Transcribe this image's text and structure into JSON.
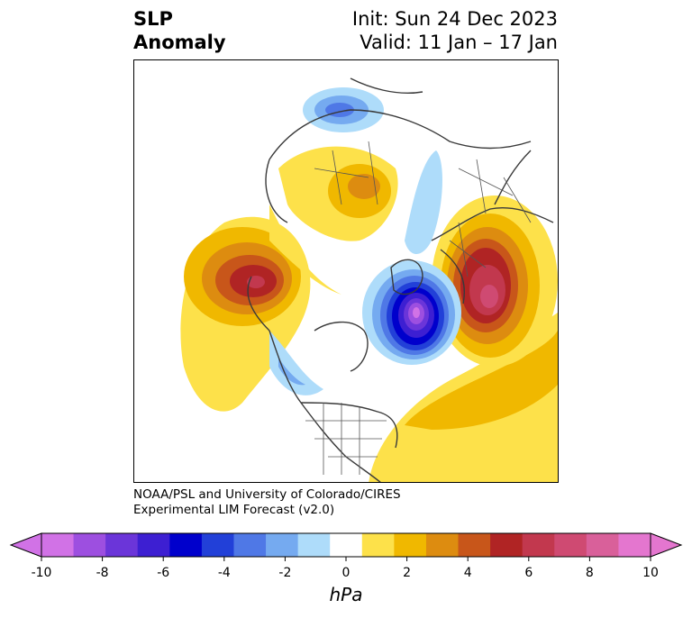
{
  "title": {
    "left_line1": "SLP",
    "left_line2": "Anomaly",
    "right_line1": "Init: Sun 24 Dec 2023",
    "right_line2": "Valid: 11 Jan – 17 Jan"
  },
  "credit": {
    "line1": "NOAA/PSL and University of Colorado/CIRES",
    "line2": "Experimental LIM Forecast (v2.0)"
  },
  "colorbar": {
    "unit": "hPa",
    "ticks": [
      "-10",
      "-8",
      "-6",
      "-4",
      "-2",
      "0",
      "2",
      "4",
      "6",
      "8",
      "10"
    ],
    "levels": [
      -10,
      -9,
      -8,
      -7,
      -6,
      -5,
      -4,
      -3,
      -2,
      -1,
      1,
      2,
      3,
      4,
      5,
      6,
      7,
      8,
      9,
      10
    ],
    "colors": [
      "#d172e6",
      "#9d4fe0",
      "#6b35d9",
      "#3d1fd2",
      "#0000cc",
      "#2240d8",
      "#4f78e6",
      "#75aaf0",
      "#aedcfa",
      "#ffffff",
      "#fde14a",
      "#f0b800",
      "#dd8c10",
      "#c8561a",
      "#b02424",
      "#c2384e",
      "#cf4a72",
      "#d9609a",
      "#e476cf"
    ],
    "under_color": "#d172e6",
    "over_color": "#e476cf"
  },
  "map": {
    "projection": "north-polar-stereographic",
    "features": [
      {
        "name": "subtropical-atlantic-high",
        "type": "high",
        "peak_hpa": 3
      },
      {
        "name": "iberia-europe-high",
        "type": "high",
        "peak_hpa": 8
      },
      {
        "name": "north-pacific-high",
        "type": "high",
        "peak_hpa": 6
      },
      {
        "name": "siberia-high",
        "type": "high",
        "peak_hpa": 4
      },
      {
        "name": "greenland-iceland-low",
        "type": "low",
        "peak_hpa": -10
      },
      {
        "name": "north-america-weak-low",
        "type": "low",
        "peak_hpa": -2
      },
      {
        "name": "scandinavia-arctic-low",
        "type": "low",
        "peak_hpa": -2
      },
      {
        "name": "southern-asia-low",
        "type": "low",
        "peak_hpa": -3
      }
    ]
  }
}
